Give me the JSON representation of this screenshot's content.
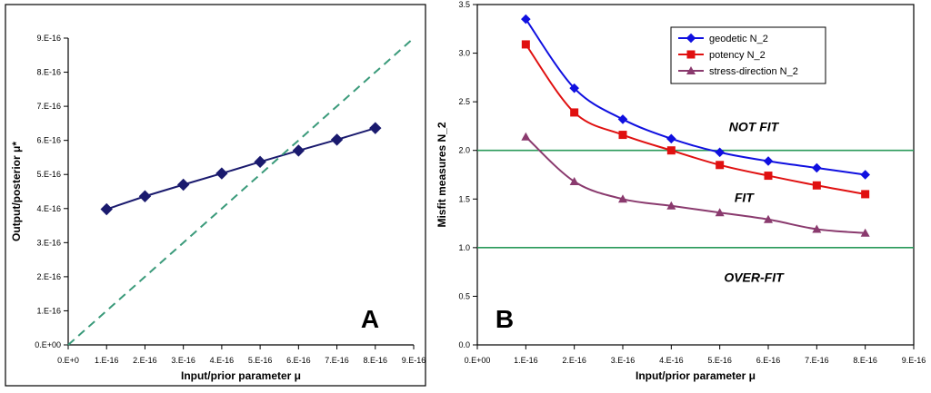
{
  "chart_data": [
    {
      "type": "line",
      "panel_label": "A",
      "xlabel": "Input/prior parameter μ",
      "ylabel": "Output/posterior μ*",
      "xlim": [
        0,
        9e-16
      ],
      "ylim": [
        0,
        9e-16
      ],
      "x_tick_labels": [
        "0.E+0",
        "1.E-16",
        "2.E-16",
        "3.E-16",
        "4.E-16",
        "5.E-16",
        "6.E-16",
        "7.E-16",
        "8.E-16",
        "9.E-16"
      ],
      "y_tick_labels": [
        "0.E+00",
        "1.E-16",
        "2.E-16",
        "3.E-16",
        "4.E-16",
        "5.E-16",
        "6.E-16",
        "7.E-16",
        "8.E-16",
        "9.E-16"
      ],
      "grid": false,
      "series": [
        {
          "color": "#1a1a6e",
          "marker": "diamond",
          "x": [
            1e-16,
            2e-16,
            3e-16,
            4e-16,
            5e-16,
            6e-16,
            7e-16,
            8e-16
          ],
          "y": [
            3.98e-16,
            4.36e-16,
            4.7e-16,
            5.03e-16,
            5.37e-16,
            5.7e-16,
            6.02e-16,
            6.36e-16
          ]
        },
        {
          "color": "#3a9a7a",
          "style": "dashed",
          "marker": "none",
          "x": [
            0,
            9e-16
          ],
          "y": [
            0,
            9e-16
          ]
        }
      ]
    },
    {
      "type": "line",
      "panel_label": "B",
      "xlabel": "Input/prior parameter μ",
      "ylabel": "Misfit measures N_2",
      "xlim": [
        0,
        9e-16
      ],
      "ylim": [
        0,
        3.5
      ],
      "x_tick_labels": [
        "0.E+00",
        "1.E-16",
        "2.E-16",
        "3.E-16",
        "4.E-16",
        "5.E-16",
        "6.E-16",
        "7.E-16",
        "8.E-16",
        "9.E-16"
      ],
      "y_tick_labels": [
        "0.0",
        "0.5",
        "1.0",
        "1.5",
        "2.0",
        "2.5",
        "3.0",
        "3.5"
      ],
      "grid": false,
      "legend_position": "top-right",
      "series": [
        {
          "name": "geodetic N_2",
          "color": "#1010e0",
          "marker": "diamond",
          "x": [
            1e-16,
            2e-16,
            3e-16,
            4e-16,
            5e-16,
            6e-16,
            7e-16,
            8e-16
          ],
          "y": [
            3.35,
            2.64,
            2.32,
            2.12,
            1.98,
            1.89,
            1.82,
            1.75
          ]
        },
        {
          "name": "potency N_2",
          "color": "#e01010",
          "marker": "square",
          "x": [
            1e-16,
            2e-16,
            3e-16,
            4e-16,
            5e-16,
            6e-16,
            7e-16,
            8e-16
          ],
          "y": [
            3.09,
            2.39,
            2.16,
            2.0,
            1.85,
            1.74,
            1.64,
            1.55
          ]
        },
        {
          "name": "stress-direction N_2",
          "color": "#8a3a6e",
          "marker": "triangle",
          "x": [
            1e-16,
            2e-16,
            3e-16,
            4e-16,
            5e-16,
            6e-16,
            7e-16,
            8e-16
          ],
          "y": [
            2.14,
            1.68,
            1.5,
            1.43,
            1.36,
            1.29,
            1.19,
            1.15
          ]
        }
      ],
      "reference_lines": [
        {
          "y": 2.0,
          "color": "#2a9a5a"
        },
        {
          "y": 1.0,
          "color": "#2a9a5a"
        }
      ],
      "annotations": [
        {
          "text": "NOT  FIT",
          "x": 5.7e-16,
          "y": 2.2
        },
        {
          "text": "FIT",
          "x": 5.5e-16,
          "y": 1.47
        },
        {
          "text": "OVER-FIT",
          "x": 5.7e-16,
          "y": 0.65
        }
      ]
    }
  ]
}
